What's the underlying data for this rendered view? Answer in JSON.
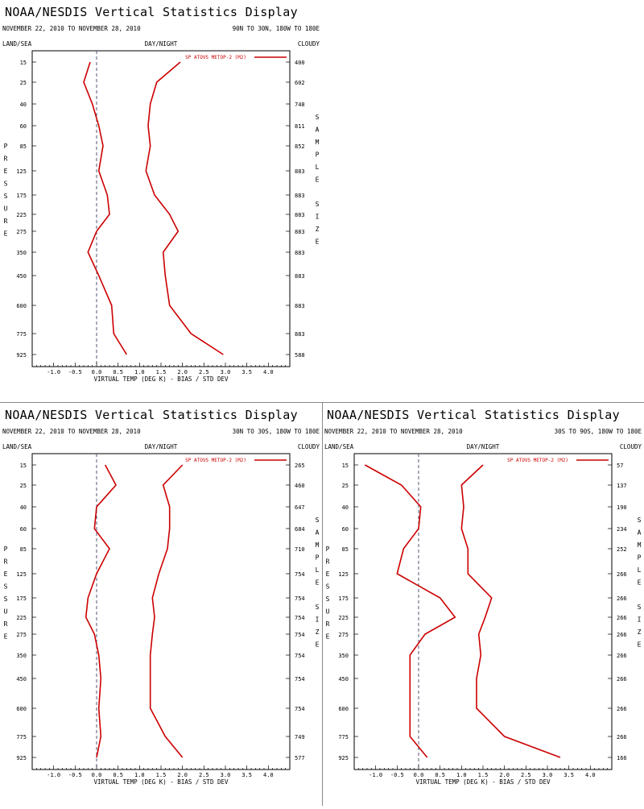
{
  "panels": [
    {
      "title": "NOAA/NESDIS Vertical Statistics Display",
      "date_range": "NOVEMBER 22, 2010 TO NOVEMBER 28, 2010",
      "region": "90N TO 30N, 180W TO 180E",
      "land_sea": "LAND/SEA",
      "day_night": "DAY/NIGHT",
      "cloudy": "CLOUDY"
    },
    {
      "title": "NOAA/NESDIS Vertical Statistics Display",
      "date_range": "NOVEMBER 22, 2010 TO NOVEMBER 28, 2010",
      "region": "30N TO 30S, 180W TO 180E",
      "land_sea": "LAND/SEA",
      "day_night": "DAY/NIGHT",
      "cloudy": "CLOUDY"
    },
    {
      "title": "NOAA/NESDIS Vertical Statistics Display",
      "date_range": "NOVEMBER 22, 2010 TO NOVEMBER 28, 2010",
      "region": "30S TO 90S, 180W TO 180E",
      "land_sea": "LAND/SEA",
      "day_night": "DAY/NIGHT",
      "cloudy": "CLOUDY"
    }
  ],
  "chart_data": [
    {
      "type": "line",
      "legend": "SP ATOVS METOP-2 (M2)",
      "xlabel": "VIRTUAL TEMP (DEG K) - BIAS / STD DEV",
      "ylabel": "PRESSURE",
      "right_label": "SAMPLE SIZE",
      "x_ticks": [
        "-1.0",
        "-0.5",
        "0.0",
        "0.5",
        "1.0",
        "1.5",
        "2.0",
        "2.5",
        "3.0",
        "3.5",
        "4.0"
      ],
      "xlim": [
        -1.5,
        4.5
      ],
      "levels": [
        "15",
        "25",
        "40",
        "60",
        "85",
        "125",
        "175",
        "225",
        "275",
        "350",
        "450",
        "600",
        "775",
        "925"
      ],
      "sample_size": [
        "400",
        "602",
        "748",
        "811",
        "852",
        "883",
        "883",
        "883",
        "883",
        "883",
        "883",
        "883",
        "883",
        "588"
      ],
      "bias": [
        -0.15,
        -0.3,
        -0.1,
        0.05,
        0.15,
        0.05,
        0.25,
        0.3,
        0.0,
        -0.2,
        0.05,
        0.35,
        0.4,
        0.7
      ],
      "std_dev": [
        1.95,
        1.4,
        1.25,
        1.2,
        1.25,
        1.15,
        1.35,
        1.7,
        1.9,
        1.55,
        1.6,
        1.7,
        2.2,
        2.95
      ]
    },
    {
      "type": "line",
      "legend": "SP ATOVS METOP-2 (M2)",
      "xlabel": "VIRTUAL TEMP (DEG K) - BIAS / STD DEV",
      "ylabel": "PRESSURE",
      "right_label": "SAMPLE SIZE",
      "x_ticks": [
        "-1.0",
        "-0.5",
        "0.0",
        "0.5",
        "1.0",
        "1.5",
        "2.0",
        "2.5",
        "3.0",
        "3.5",
        "4.0"
      ],
      "xlim": [
        -1.5,
        4.5
      ],
      "levels": [
        "15",
        "25",
        "40",
        "60",
        "85",
        "125",
        "175",
        "225",
        "275",
        "350",
        "450",
        "600",
        "775",
        "925"
      ],
      "sample_size": [
        "265",
        "460",
        "647",
        "684",
        "710",
        "754",
        "754",
        "754",
        "754",
        "754",
        "754",
        "754",
        "749",
        "577"
      ],
      "bias": [
        0.2,
        0.45,
        0.0,
        -0.05,
        0.3,
        0.0,
        -0.2,
        -0.25,
        -0.05,
        0.05,
        0.1,
        0.05,
        0.1,
        0.0
      ],
      "std_dev": [
        2.0,
        1.55,
        1.7,
        1.7,
        1.65,
        1.45,
        1.3,
        1.35,
        1.3,
        1.25,
        1.25,
        1.25,
        1.6,
        2.0
      ]
    },
    {
      "type": "line",
      "legend": "SP ATOVS METOP-2 (M2)",
      "xlabel": "VIRTUAL TEMP (DEG K) - BIAS / STD DEV",
      "ylabel": "PRESSURE",
      "right_label": "SAMPLE SIZE",
      "x_ticks": [
        "-1.0",
        "-0.5",
        "0.0",
        "0.5",
        "1.0",
        "1.5",
        "2.0",
        "2.5",
        "3.0",
        "3.5",
        "4.0"
      ],
      "xlim": [
        -1.5,
        4.5
      ],
      "levels": [
        "15",
        "25",
        "40",
        "60",
        "85",
        "125",
        "175",
        "225",
        "275",
        "350",
        "450",
        "600",
        "775",
        "925"
      ],
      "sample_size": [
        "57",
        "137",
        "190",
        "234",
        "252",
        "266",
        "266",
        "266",
        "266",
        "266",
        "266",
        "266",
        "266",
        "166"
      ],
      "bias": [
        -1.25,
        -0.4,
        0.05,
        0.0,
        -0.35,
        -0.5,
        0.5,
        0.85,
        0.15,
        -0.2,
        -0.2,
        -0.2,
        -0.2,
        0.2
      ],
      "std_dev": [
        1.5,
        1.0,
        1.05,
        1.0,
        1.15,
        1.15,
        1.7,
        1.55,
        1.4,
        1.45,
        1.35,
        1.35,
        2.0,
        3.3
      ]
    }
  ],
  "colors": {
    "series": "#cc0000",
    "axes": "#000000",
    "zero_line": "#555577"
  }
}
